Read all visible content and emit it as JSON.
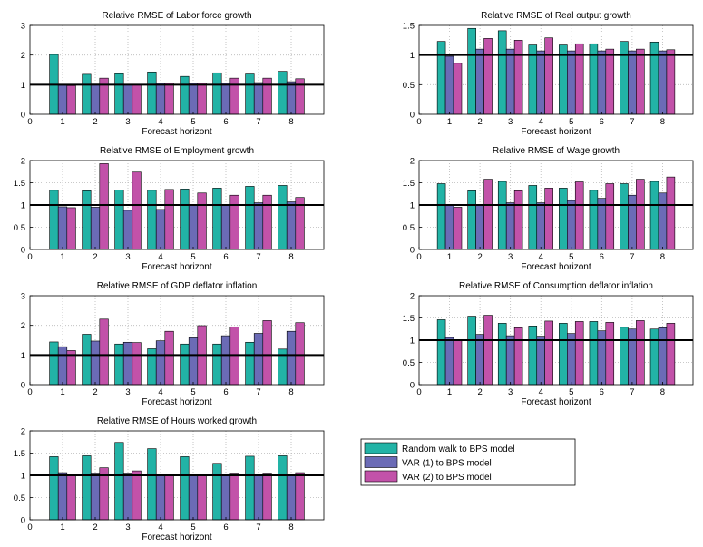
{
  "colors": {
    "s0": "#22b3a6",
    "s1": "#6b6bb6",
    "s2": "#c252a9",
    "ref": "#000000",
    "grid": "#b8b8b8"
  },
  "legend": {
    "entries": [
      "Random walk to BPS model",
      "VAR (1) to BPS model",
      "VAR (2) to BPS model"
    ]
  },
  "chart_data": [
    {
      "type": "bar",
      "title": "Relative RMSE of Labor force growth",
      "xlabel": "Forecast horizont",
      "categories": [
        "1",
        "2",
        "3",
        "4",
        "5",
        "6",
        "7",
        "8"
      ],
      "xticks": [
        "0",
        "1",
        "2",
        "3",
        "4",
        "5",
        "6",
        "7",
        "8"
      ],
      "yticks": [
        "0",
        "1",
        "2",
        "3"
      ],
      "ylim": [
        0,
        3
      ],
      "reference_line": 1,
      "grid": true,
      "series": [
        {
          "name": "Random walk to BPS model",
          "values": [
            2.02,
            1.35,
            1.37,
            1.43,
            1.28,
            1.4,
            1.36,
            1.45
          ]
        },
        {
          "name": "VAR (1) to BPS model",
          "values": [
            0.98,
            1.02,
            1.0,
            1.05,
            1.05,
            1.05,
            1.07,
            1.1
          ]
        },
        {
          "name": "VAR (2) to BPS model",
          "values": [
            0.97,
            1.22,
            1.0,
            1.05,
            1.05,
            1.22,
            1.22,
            1.2
          ]
        }
      ]
    },
    {
      "type": "bar",
      "title": "Relative RMSE of  Real output growth",
      "xlabel": "Forecast horizont",
      "categories": [
        "1",
        "2",
        "3",
        "4",
        "5",
        "6",
        "7",
        "8"
      ],
      "xticks": [
        "0",
        "1",
        "2",
        "3",
        "4",
        "5",
        "6",
        "7",
        "8"
      ],
      "yticks": [
        "0",
        "0.5",
        "1",
        "1.5"
      ],
      "ylim": [
        0,
        1.5
      ],
      "reference_line": 1,
      "grid": true,
      "series": [
        {
          "name": "Random walk to BPS model",
          "values": [
            1.23,
            1.45,
            1.41,
            1.17,
            1.17,
            1.19,
            1.23,
            1.22
          ]
        },
        {
          "name": "VAR (1) to BPS model",
          "values": [
            0.98,
            1.1,
            1.1,
            1.07,
            1.07,
            1.07,
            1.07,
            1.07
          ]
        },
        {
          "name": "VAR (2) to BPS model",
          "values": [
            0.86,
            1.28,
            1.25,
            1.29,
            1.19,
            1.1,
            1.1,
            1.09
          ]
        }
      ]
    },
    {
      "type": "bar",
      "title": "Relative RMSE of Employment growth",
      "xlabel": "Forecast horizont",
      "categories": [
        "1",
        "2",
        "3",
        "4",
        "5",
        "6",
        "7",
        "8"
      ],
      "xticks": [
        "0",
        "1",
        "2",
        "3",
        "4",
        "5",
        "6",
        "7",
        "8"
      ],
      "yticks": [
        "0",
        "0.5",
        "1",
        "1.5",
        "2"
      ],
      "ylim": [
        0,
        2
      ],
      "reference_line": 1,
      "grid": true,
      "series": [
        {
          "name": "Random walk to BPS model",
          "values": [
            1.33,
            1.32,
            1.34,
            1.33,
            1.36,
            1.38,
            1.42,
            1.44
          ]
        },
        {
          "name": "VAR (1) to BPS model",
          "values": [
            0.96,
            0.95,
            0.88,
            0.9,
            1.0,
            1.0,
            1.05,
            1.07
          ]
        },
        {
          "name": "VAR (2) to BPS model",
          "values": [
            0.94,
            1.93,
            1.74,
            1.35,
            1.27,
            1.22,
            1.22,
            1.17
          ]
        }
      ]
    },
    {
      "type": "bar",
      "title": "Relative RMSE of Wage growth",
      "xlabel": "Forecast horizont",
      "categories": [
        "1",
        "2",
        "3",
        "4",
        "5",
        "6",
        "7",
        "8"
      ],
      "xticks": [
        "0",
        "1",
        "2",
        "3",
        "4",
        "5",
        "6",
        "7",
        "8"
      ],
      "yticks": [
        "0",
        "0.5",
        "1",
        "1.5",
        "2"
      ],
      "ylim": [
        0,
        2
      ],
      "reference_line": 1,
      "grid": true,
      "series": [
        {
          "name": "Random walk to BPS model",
          "values": [
            1.48,
            1.32,
            1.53,
            1.44,
            1.38,
            1.33,
            1.48,
            1.53
          ]
        },
        {
          "name": "VAR (1) to BPS model",
          "values": [
            1.0,
            1.0,
            1.05,
            1.05,
            1.1,
            1.15,
            1.22,
            1.27
          ]
        },
        {
          "name": "VAR (2) to BPS model",
          "values": [
            0.95,
            1.58,
            1.32,
            1.38,
            1.52,
            1.48,
            1.58,
            1.63
          ]
        }
      ]
    },
    {
      "type": "bar",
      "title": "Relative RMSE of GDP deflator inflation",
      "xlabel": "Forecast horizont",
      "categories": [
        "1",
        "2",
        "3",
        "4",
        "5",
        "6",
        "7",
        "8"
      ],
      "xticks": [
        "0",
        "1",
        "2",
        "3",
        "4",
        "5",
        "6",
        "7",
        "8"
      ],
      "yticks": [
        "0",
        "1",
        "2",
        "3"
      ],
      "ylim": [
        0,
        3
      ],
      "reference_line": 1,
      "grid": true,
      "series": [
        {
          "name": "Random walk to BPS model",
          "values": [
            1.44,
            1.7,
            1.37,
            1.21,
            1.37,
            1.37,
            1.43,
            1.2
          ]
        },
        {
          "name": "VAR (1) to BPS model",
          "values": [
            1.28,
            1.47,
            1.43,
            1.48,
            1.58,
            1.65,
            1.73,
            1.8
          ]
        },
        {
          "name": "VAR (2) to BPS model",
          "values": [
            1.15,
            2.21,
            1.42,
            1.8,
            1.99,
            1.95,
            2.16,
            2.09
          ]
        }
      ]
    },
    {
      "type": "bar",
      "title": "Relative RMSE of Consumption deflator inflation",
      "xlabel": "Forecast horizont",
      "categories": [
        "1",
        "2",
        "3",
        "4",
        "5",
        "6",
        "7",
        "8"
      ],
      "xticks": [
        "0",
        "1",
        "2",
        "3",
        "4",
        "5",
        "6",
        "7",
        "8"
      ],
      "yticks": [
        "0",
        "0.5",
        "1",
        "1.5",
        "2"
      ],
      "ylim": [
        0,
        2
      ],
      "reference_line": 1,
      "grid": true,
      "series": [
        {
          "name": "Random walk to BPS model",
          "values": [
            1.46,
            1.54,
            1.38,
            1.32,
            1.38,
            1.42,
            1.29,
            1.25
          ]
        },
        {
          "name": "VAR (1) to BPS model",
          "values": [
            1.06,
            1.13,
            1.1,
            1.09,
            1.15,
            1.21,
            1.25,
            1.28
          ]
        },
        {
          "name": "VAR (2) to BPS model",
          "values": [
            1.0,
            1.56,
            1.28,
            1.43,
            1.42,
            1.4,
            1.44,
            1.38
          ]
        }
      ]
    },
    {
      "type": "bar",
      "title": "Relative RMSE of Hours worked growth",
      "xlabel": "Forecast horizont",
      "categories": [
        "1",
        "2",
        "3",
        "4",
        "5",
        "6",
        "7",
        "8"
      ],
      "xticks": [
        "0",
        "1",
        "2",
        "3",
        "4",
        "5",
        "6",
        "7",
        "8"
      ],
      "yticks": [
        "0",
        "0.5",
        "1",
        "1.5",
        "2"
      ],
      "ylim": [
        0,
        2
      ],
      "reference_line": 1,
      "grid": true,
      "series": [
        {
          "name": "Random walk to BPS model",
          "values": [
            1.42,
            1.44,
            1.74,
            1.6,
            1.42,
            1.27,
            1.43,
            1.44
          ]
        },
        {
          "name": "VAR (1) to BPS model",
          "values": [
            1.06,
            1.05,
            1.05,
            1.03,
            1.0,
            1.0,
            1.0,
            1.0
          ]
        },
        {
          "name": "VAR (2) to BPS model",
          "values": [
            1.0,
            1.17,
            1.1,
            1.03,
            1.0,
            1.05,
            1.05,
            1.06
          ]
        }
      ]
    }
  ]
}
